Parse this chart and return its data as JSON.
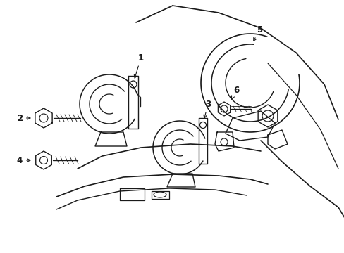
{
  "background_color": "#ffffff",
  "line_color": "#1a1a1a",
  "line_width": 1.0,
  "label_fontsize": 8.5,
  "figsize": [
    4.89,
    3.6
  ],
  "dpi": 100
}
